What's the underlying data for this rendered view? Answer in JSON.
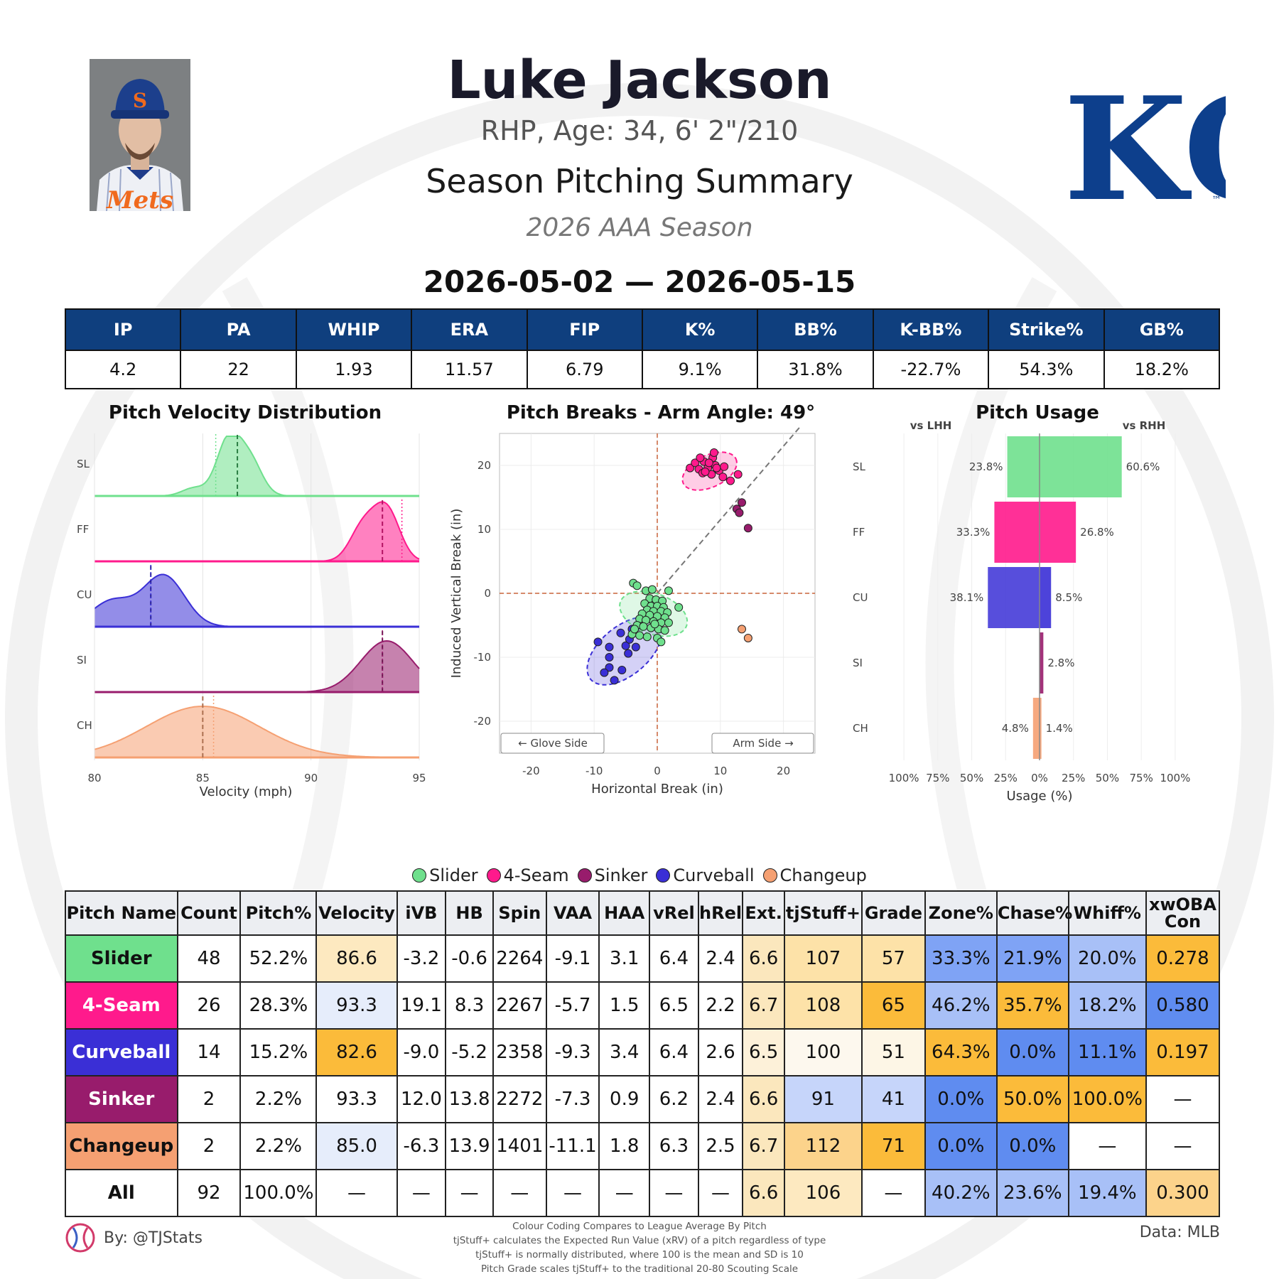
{
  "header": {
    "player_name": "Luke Jackson",
    "bio": "RHP, Age: 34, 6' 2\"/210",
    "title": "Season Pitching Summary",
    "season": "2026 AAA Season",
    "date_range": "2026-05-02 — 2026-05-15",
    "team_logo_text": "KC",
    "headshot_icon": "player-headshot",
    "cap_letter": "S"
  },
  "stats": {
    "headers": [
      "IP",
      "PA",
      "WHIP",
      "ERA",
      "FIP",
      "K%",
      "BB%",
      "K-BB%",
      "Strike%",
      "GB%"
    ],
    "values": [
      "4.2",
      "22",
      "1.93",
      "11.57",
      "6.79",
      "9.1%",
      "31.8%",
      "-22.7%",
      "54.3%",
      "18.2%"
    ]
  },
  "colors": {
    "Slider": "#6fe08d",
    "4-Seam": "#ff1a8c",
    "Sinker": "#981c6c",
    "Curveball": "#3a2fd6",
    "Changeup": "#f5a072",
    "header_blue": "#0f3f7e"
  },
  "legend": [
    "Slider",
    "4-Seam",
    "Sinker",
    "Curveball",
    "Changeup"
  ],
  "chart_data": [
    {
      "type": "area",
      "title": "Pitch Velocity Distribution",
      "xlabel": "Velocity (mph)",
      "xlim": [
        80,
        95
      ],
      "xticks": [
        "80",
        "85",
        "90",
        "95"
      ],
      "series": [
        {
          "name": "SL",
          "pitch": "Slider",
          "mean": 86.6,
          "median": 85.6,
          "peaks": [
            [
              84.6,
              0.14
            ],
            [
              86.2,
              1.0
            ],
            [
              87.2,
              0.6
            ]
          ],
          "sd": 0.55
        },
        {
          "name": "FF",
          "pitch": "4-Seam",
          "mean": 93.3,
          "median": 94.2,
          "peaks": [
            [
              92.4,
              0.6
            ],
            [
              93.5,
              0.9
            ]
          ],
          "sd": 0.6
        },
        {
          "name": "CU",
          "pitch": "Curveball",
          "mean": 82.6,
          "median": 82.6,
          "peaks": [
            [
              80.8,
              0.45
            ],
            [
              83.2,
              0.9
            ]
          ],
          "sd": 0.95
        },
        {
          "name": "SI",
          "pitch": "Sinker",
          "mean": 93.3,
          "median": 93.3,
          "peaks": [
            [
              93.5,
              0.9
            ]
          ],
          "sd": 1.2
        },
        {
          "name": "CH",
          "pitch": "Changeup",
          "mean": 85.0,
          "median": 85.5,
          "peaks": [
            [
              85.0,
              0.9
            ]
          ],
          "sd": 2.6
        }
      ]
    },
    {
      "type": "scatter",
      "title": "Pitch Breaks - Arm Angle: 49°",
      "xlabel": "Horizontal Break (in)",
      "ylabel": "Induced Vertical Break (in)",
      "xlim": [
        -25,
        25
      ],
      "ylim": [
        -25,
        25
      ],
      "xticks": [
        "-20",
        "-10",
        "0",
        "10",
        "20"
      ],
      "yticks": [
        "20",
        "10",
        "0",
        "-10",
        "-20"
      ],
      "annotations": [
        "← Glove Side",
        "Arm Side →"
      ],
      "series": [
        {
          "name": "Slider",
          "ellipse": {
            "cx": -0.6,
            "cy": -3.2,
            "rx": 3.2,
            "ry": 5.5,
            "angle": 70
          },
          "points": [
            [
              -3.8,
              1.6
            ],
            [
              -3.2,
              1.2
            ],
            [
              -1.8,
              0.4
            ],
            [
              -0.8,
              0.6
            ],
            [
              1.8,
              0.4
            ],
            [
              -1.2,
              -0.8
            ],
            [
              -0.2,
              -1.0
            ],
            [
              0.8,
              -1.2
            ],
            [
              -2.0,
              -1.6
            ],
            [
              -1.0,
              -2.0
            ],
            [
              0.0,
              -2.0
            ],
            [
              1.0,
              -2.2
            ],
            [
              -1.6,
              -2.6
            ],
            [
              -0.6,
              -2.8
            ],
            [
              0.6,
              -2.8
            ],
            [
              1.6,
              -3.0
            ],
            [
              -2.4,
              -3.2
            ],
            [
              -1.2,
              -3.4
            ],
            [
              0.0,
              -3.6
            ],
            [
              1.2,
              -3.8
            ],
            [
              3.4,
              -2.2
            ],
            [
              -2.8,
              -4.0
            ],
            [
              -1.8,
              -4.2
            ],
            [
              -0.6,
              -4.4
            ],
            [
              0.6,
              -4.6
            ],
            [
              1.8,
              -4.6
            ],
            [
              -3.2,
              -5.0
            ],
            [
              -2.2,
              -5.2
            ],
            [
              -1.0,
              -5.4
            ],
            [
              0.2,
              -5.6
            ],
            [
              1.2,
              -5.8
            ],
            [
              -4.0,
              -6.4
            ],
            [
              -2.8,
              -6.6
            ],
            [
              -1.6,
              -6.8
            ],
            [
              0.0,
              -7.0
            ],
            [
              -3.6,
              -5.6
            ],
            [
              0.6,
              -7.6
            ],
            [
              -0.4,
              -4.8
            ]
          ]
        },
        {
          "name": "4-Seam",
          "ellipse": {
            "cx": 8.3,
            "cy": 19.1,
            "rx": 4.6,
            "ry": 2.5,
            "angle": 25
          },
          "points": [
            [
              5.2,
              19.6
            ],
            [
              6.0,
              20.4
            ],
            [
              6.6,
              19.4
            ],
            [
              7.2,
              18.8
            ],
            [
              7.4,
              20.6
            ],
            [
              8.0,
              19.6
            ],
            [
              8.6,
              18.6
            ],
            [
              8.8,
              21.2
            ],
            [
              9.2,
              20.0
            ],
            [
              9.8,
              19.2
            ],
            [
              10.4,
              18.2
            ],
            [
              12.8,
              18.6
            ],
            [
              6.8,
              21.2
            ],
            [
              7.6,
              19.0
            ],
            [
              9.0,
              22.0
            ],
            [
              8.2,
              20.4
            ],
            [
              9.4,
              19.6
            ],
            [
              10.6,
              19.8
            ],
            [
              11.6,
              17.6
            ]
          ]
        },
        {
          "name": "Sinker",
          "points": [
            [
              12.6,
              13.2
            ],
            [
              13.4,
              14.2
            ],
            [
              14.4,
              10.2
            ],
            [
              13.0,
              12.6
            ]
          ]
        },
        {
          "name": "Curveball",
          "ellipse": {
            "cx": -5.2,
            "cy": -9.0,
            "rx": 7.0,
            "ry": 3.8,
            "angle": 40
          },
          "points": [
            [
              -9.4,
              -7.6
            ],
            [
              -7.6,
              -10.0
            ],
            [
              -5.8,
              -6.2
            ],
            [
              -5.0,
              -8.2
            ],
            [
              -7.6,
              -11.6
            ],
            [
              -5.6,
              -12.0
            ],
            [
              -6.8,
              -13.6
            ],
            [
              -4.0,
              -5.6
            ],
            [
              -2.8,
              -5.2
            ],
            [
              -4.4,
              -7.2
            ],
            [
              -3.4,
              -8.4
            ],
            [
              -7.6,
              -8.4
            ],
            [
              -8.4,
              -12.4
            ],
            [
              -4.6,
              -9.4
            ]
          ]
        },
        {
          "name": "Changeup",
          "points": [
            [
              13.4,
              -5.6
            ],
            [
              14.4,
              -7.0
            ]
          ]
        }
      ]
    },
    {
      "type": "bar",
      "title": "Pitch Usage",
      "xlabel": "Usage (%)",
      "left_label": "vs LHH",
      "right_label": "vs RHH",
      "categories": [
        "SL",
        "FF",
        "CU",
        "SI",
        "CH"
      ],
      "xticks": [
        "100%",
        "75%",
        "50%",
        "25%",
        "0%",
        "25%",
        "50%",
        "75%",
        "100%"
      ],
      "series": [
        {
          "name": "vs LHH",
          "values": [
            23.8,
            33.3,
            38.1,
            0.0,
            4.8
          ],
          "labels": [
            "23.8%",
            "33.3%",
            "38.1%",
            "",
            "4.8%"
          ]
        },
        {
          "name": "vs RHH",
          "values": [
            60.6,
            26.8,
            8.5,
            2.8,
            1.4
          ],
          "labels": [
            "60.6%",
            "26.8%",
            "8.5%",
            "2.8%",
            "1.4%"
          ]
        }
      ]
    },
    {
      "type": "table",
      "columns": [
        "Pitch Name",
        "Count",
        "Pitch%",
        "Velocity",
        "iVB",
        "HB",
        "Spin",
        "VAA",
        "HAA",
        "vRel",
        "hRel",
        "Ext.",
        "tjStuff+",
        "Grade",
        "Zone%",
        "Chase%",
        "Whiff%",
        "xwOBA Con"
      ],
      "rows": [
        {
          "pitch": "Slider",
          "text_color": "#111111",
          "cells": [
            "Slider",
            "48",
            "52.2%",
            "86.6",
            "-3.2",
            "-0.6",
            "2264",
            "-9.1",
            "3.1",
            "6.4",
            "2.4",
            "6.6",
            "107",
            "57",
            "33.3%",
            "21.9%",
            "20.0%",
            "0.278"
          ],
          "bg": [
            "#6fe08d",
            "#fff",
            "#fff",
            "#fde9c0",
            "#fff",
            "#fff",
            "#fff",
            "#fff",
            "#fff",
            "#fff",
            "#fff",
            "#fbe7bd",
            "#fde2a8",
            "#fde2a8",
            "#7fa3f5",
            "#7fa3f5",
            "#a8c0f7",
            "#fbbb3a"
          ]
        },
        {
          "pitch": "4-Seam",
          "text_color": "#ffffff",
          "cells": [
            "4-Seam",
            "26",
            "28.3%",
            "93.3",
            "19.1",
            "8.3",
            "2267",
            "-5.7",
            "1.5",
            "6.5",
            "2.2",
            "6.7",
            "108",
            "65",
            "46.2%",
            "35.7%",
            "18.2%",
            "0.580"
          ],
          "bg": [
            "#ff1a8c",
            "#fff",
            "#fff",
            "#e6edfb",
            "#fff",
            "#fff",
            "#fff",
            "#fff",
            "#fff",
            "#fff",
            "#fff",
            "#fbe7bd",
            "#fde2a8",
            "#fbbb3a",
            "#a8c0f7",
            "#fbbb3a",
            "#a8c0f7",
            "#5f8cf0"
          ]
        },
        {
          "pitch": "Curveball",
          "text_color": "#ffffff",
          "cells": [
            "Curveball",
            "14",
            "15.2%",
            "82.6",
            "-9.0",
            "-5.2",
            "2358",
            "-9.3",
            "3.4",
            "6.4",
            "2.6",
            "6.5",
            "100",
            "51",
            "64.3%",
            "0.0%",
            "11.1%",
            "0.197"
          ],
          "bg": [
            "#3a2fd6",
            "#fff",
            "#fff",
            "#fbbb3a",
            "#fff",
            "#fff",
            "#fff",
            "#fff",
            "#fff",
            "#fff",
            "#fff",
            "#fdf1d9",
            "#fdf8ee",
            "#fdf6e6",
            "#fbbb3a",
            "#5f8cf0",
            "#5f8cf0",
            "#fbbb3a"
          ]
        },
        {
          "pitch": "Sinker",
          "text_color": "#ffffff",
          "cells": [
            "Sinker",
            "2",
            "2.2%",
            "93.3",
            "12.0",
            "13.8",
            "2272",
            "-7.3",
            "0.9",
            "6.2",
            "2.4",
            "6.6",
            "91",
            "41",
            "0.0%",
            "50.0%",
            "100.0%",
            "—"
          ],
          "bg": [
            "#981c6c",
            "#fff",
            "#fff",
            "#fff",
            "#fff",
            "#fff",
            "#fff",
            "#fff",
            "#fff",
            "#fff",
            "#fff",
            "#fbe7bd",
            "#c6d5fa",
            "#c6d5fa",
            "#5f8cf0",
            "#fbbb3a",
            "#fbbb3a",
            "#fff"
          ]
        },
        {
          "pitch": "Changeup",
          "text_color": "#111111",
          "cells": [
            "Changeup",
            "2",
            "2.2%",
            "85.0",
            "-6.3",
            "13.9",
            "1401",
            "-11.1",
            "1.8",
            "6.3",
            "2.5",
            "6.7",
            "112",
            "71",
            "0.0%",
            "0.0%",
            "—",
            "—"
          ],
          "bg": [
            "#f5a072",
            "#fff",
            "#fff",
            "#e6edfb",
            "#fff",
            "#fff",
            "#fff",
            "#fff",
            "#fff",
            "#fff",
            "#fff",
            "#fbe7bd",
            "#fcd38b",
            "#fbbb3a",
            "#5f8cf0",
            "#5f8cf0",
            "#fff",
            "#fff"
          ]
        },
        {
          "pitch": "All",
          "text_color": "#111111",
          "cells": [
            "All",
            "92",
            "100.0%",
            "—",
            "—",
            "—",
            "—",
            "—",
            "—",
            "—",
            "—",
            "6.6",
            "106",
            "—",
            "40.2%",
            "23.6%",
            "19.4%",
            "0.300"
          ],
          "bg": [
            "#fff",
            "#fff",
            "#fff",
            "#fff",
            "#fff",
            "#fff",
            "#fff",
            "#fff",
            "#fff",
            "#fff",
            "#fff",
            "#fbe7bd",
            "#fde9c0",
            "#fff",
            "#a8c0f7",
            "#a8c0f7",
            "#a8c0f7",
            "#fcd38b"
          ]
        }
      ]
    }
  ],
  "footer": {
    "by": "By: @TJStats",
    "data_source": "Data: MLB",
    "notes": [
      "Colour Coding Compares to League Average By Pitch",
      "tjStuff+ calculates the Expected Run Value (xRV) of a pitch regardless of type",
      "tjStuff+ is normally distributed, where 100 is the mean and SD is 10",
      "Pitch Grade scales tjStuff+ to the traditional 20-80 Scouting Scale"
    ]
  }
}
